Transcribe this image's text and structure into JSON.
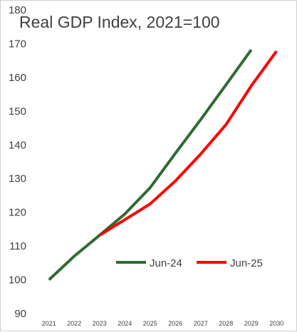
{
  "chart_data": {
    "type": "line",
    "title": "Real GDP Index, 2021=100",
    "xlabel": "",
    "ylabel": "",
    "categories": [
      "2021",
      "2022",
      "2023",
      "2024",
      "2025",
      "2026",
      "2027",
      "2028",
      "2029",
      "2030"
    ],
    "ylim": [
      90,
      180
    ],
    "yticks": [
      90,
      100,
      110,
      120,
      130,
      140,
      150,
      160,
      170,
      180
    ],
    "grid": false,
    "legend_position": "bottom-right",
    "series": [
      {
        "name": "Jun-24",
        "color": "#2e6b30",
        "values": [
          100,
          107,
          113.2,
          119.5,
          127.3,
          137.5,
          147.5,
          157.8,
          168.2,
          null
        ]
      },
      {
        "name": "Jun-25",
        "color": "#ff0000",
        "values": [
          null,
          null,
          113.2,
          117.8,
          122.5,
          129.3,
          137.3,
          146,
          157.5,
          167.8
        ]
      }
    ]
  }
}
